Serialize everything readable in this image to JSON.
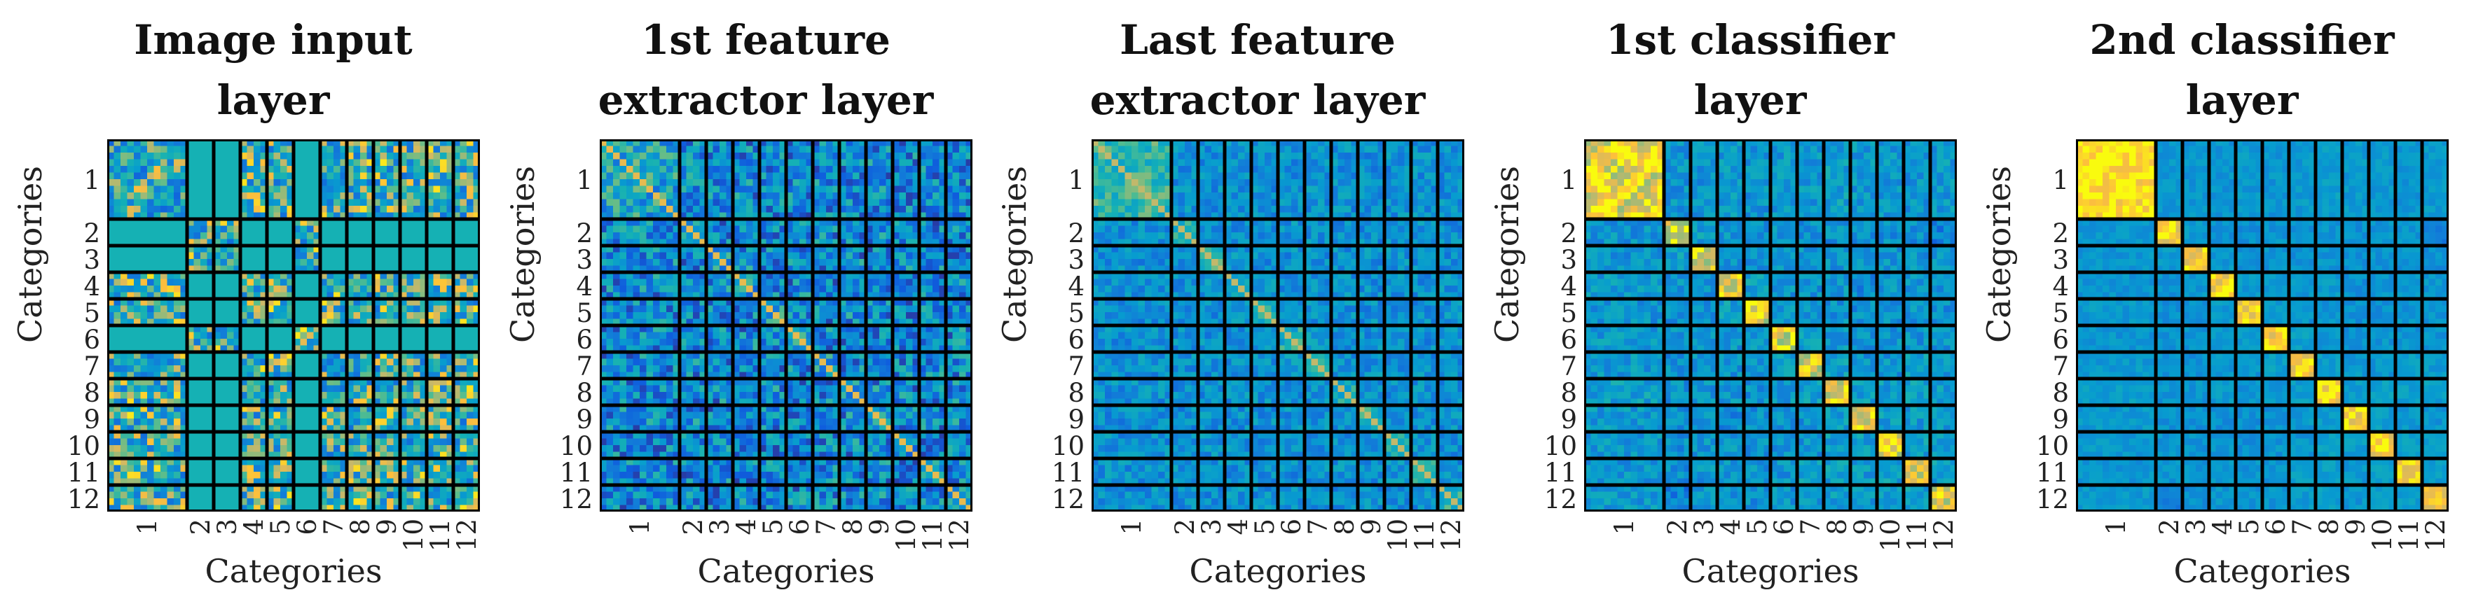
{
  "chart_data": {
    "type": "heatmap",
    "description_note": "",
    "colormap": "parula",
    "cell_separator_color": "#000000",
    "categories": [
      "1",
      "2",
      "3",
      "4",
      "5",
      "6",
      "7",
      "8",
      "9",
      "10",
      "11",
      "12"
    ],
    "category_sizes": [
      12,
      4,
      4,
      4,
      4,
      4,
      4,
      4,
      4,
      4,
      4,
      4
    ],
    "panels": [
      {
        "title": [
          "Image input",
          "layer"
        ],
        "xlabel": "Categories",
        "ylabel": "Categories",
        "block_similarity": [
          [
            0.55,
            0.45,
            0.45,
            0.6,
            0.6,
            0.45,
            0.6,
            0.6,
            0.6,
            0.6,
            0.6,
            0.6
          ],
          [
            0.45,
            0.6,
            0.6,
            0.45,
            0.45,
            0.6,
            0.45,
            0.45,
            0.45,
            0.45,
            0.45,
            0.45
          ],
          [
            0.45,
            0.6,
            0.6,
            0.45,
            0.45,
            0.6,
            0.45,
            0.45,
            0.45,
            0.45,
            0.45,
            0.45
          ],
          [
            0.6,
            0.45,
            0.45,
            0.6,
            0.6,
            0.45,
            0.6,
            0.6,
            0.6,
            0.6,
            0.6,
            0.6
          ],
          [
            0.6,
            0.45,
            0.45,
            0.6,
            0.6,
            0.45,
            0.6,
            0.6,
            0.6,
            0.6,
            0.6,
            0.6
          ],
          [
            0.45,
            0.6,
            0.6,
            0.45,
            0.45,
            0.6,
            0.45,
            0.45,
            0.45,
            0.45,
            0.45,
            0.45
          ],
          [
            0.6,
            0.45,
            0.45,
            0.6,
            0.6,
            0.45,
            0.6,
            0.6,
            0.6,
            0.6,
            0.6,
            0.6
          ],
          [
            0.6,
            0.45,
            0.45,
            0.6,
            0.6,
            0.45,
            0.6,
            0.6,
            0.6,
            0.6,
            0.6,
            0.6
          ],
          [
            0.6,
            0.45,
            0.45,
            0.6,
            0.6,
            0.45,
            0.6,
            0.6,
            0.6,
            0.6,
            0.6,
            0.6
          ],
          [
            0.6,
            0.45,
            0.45,
            0.6,
            0.6,
            0.45,
            0.6,
            0.6,
            0.6,
            0.6,
            0.6,
            0.6
          ],
          [
            0.6,
            0.45,
            0.45,
            0.6,
            0.6,
            0.45,
            0.6,
            0.6,
            0.6,
            0.6,
            0.6,
            0.6
          ],
          [
            0.6,
            0.45,
            0.45,
            0.6,
            0.6,
            0.45,
            0.6,
            0.6,
            0.6,
            0.6,
            0.6,
            0.6
          ]
        ],
        "noise": 0.38,
        "uniform_value": 0.55
      },
      {
        "title": [
          "1st feature",
          "extractor layer"
        ],
        "xlabel": "Categories",
        "ylabel": "Categories",
        "block_similarity": [
          [
            0.5,
            0.35,
            0.35,
            0.35,
            0.35,
            0.35,
            0.35,
            0.35,
            0.35,
            0.35,
            0.35,
            0.35
          ],
          [
            0.35,
            0.45,
            0.35,
            0.35,
            0.35,
            0.35,
            0.35,
            0.35,
            0.35,
            0.35,
            0.35,
            0.35
          ],
          [
            0.35,
            0.35,
            0.45,
            0.35,
            0.35,
            0.35,
            0.35,
            0.35,
            0.35,
            0.35,
            0.35,
            0.35
          ],
          [
            0.35,
            0.35,
            0.35,
            0.45,
            0.35,
            0.35,
            0.35,
            0.35,
            0.35,
            0.35,
            0.35,
            0.35
          ],
          [
            0.35,
            0.35,
            0.35,
            0.35,
            0.45,
            0.35,
            0.35,
            0.35,
            0.35,
            0.35,
            0.35,
            0.35
          ],
          [
            0.35,
            0.35,
            0.35,
            0.35,
            0.35,
            0.45,
            0.35,
            0.35,
            0.35,
            0.35,
            0.35,
            0.35
          ],
          [
            0.35,
            0.35,
            0.35,
            0.35,
            0.35,
            0.35,
            0.45,
            0.35,
            0.35,
            0.35,
            0.35,
            0.35
          ],
          [
            0.35,
            0.35,
            0.35,
            0.35,
            0.35,
            0.35,
            0.35,
            0.45,
            0.35,
            0.35,
            0.35,
            0.35
          ],
          [
            0.35,
            0.35,
            0.35,
            0.35,
            0.35,
            0.35,
            0.35,
            0.35,
            0.45,
            0.35,
            0.35,
            0.35
          ],
          [
            0.35,
            0.35,
            0.35,
            0.35,
            0.35,
            0.35,
            0.35,
            0.35,
            0.35,
            0.45,
            0.35,
            0.35
          ],
          [
            0.35,
            0.35,
            0.35,
            0.35,
            0.35,
            0.35,
            0.35,
            0.35,
            0.35,
            0.35,
            0.45,
            0.35
          ],
          [
            0.35,
            0.35,
            0.35,
            0.35,
            0.35,
            0.35,
            0.35,
            0.35,
            0.35,
            0.35,
            0.35,
            0.45
          ]
        ],
        "noise": 0.3,
        "diagonal_value": 0.9
      },
      {
        "title": [
          "Last feature",
          "extractor layer"
        ],
        "xlabel": "Categories",
        "ylabel": "Categories",
        "block_similarity": [
          [
            0.62,
            0.38,
            0.38,
            0.38,
            0.38,
            0.38,
            0.38,
            0.38,
            0.38,
            0.38,
            0.38,
            0.38
          ],
          [
            0.38,
            0.6,
            0.4,
            0.38,
            0.38,
            0.38,
            0.38,
            0.38,
            0.38,
            0.38,
            0.38,
            0.38
          ],
          [
            0.38,
            0.4,
            0.6,
            0.38,
            0.38,
            0.38,
            0.38,
            0.38,
            0.38,
            0.38,
            0.38,
            0.38
          ],
          [
            0.38,
            0.38,
            0.38,
            0.55,
            0.4,
            0.38,
            0.38,
            0.38,
            0.38,
            0.38,
            0.38,
            0.38
          ],
          [
            0.38,
            0.38,
            0.38,
            0.4,
            0.55,
            0.38,
            0.38,
            0.38,
            0.38,
            0.38,
            0.38,
            0.38
          ],
          [
            0.38,
            0.38,
            0.38,
            0.38,
            0.38,
            0.55,
            0.4,
            0.38,
            0.38,
            0.38,
            0.38,
            0.38
          ],
          [
            0.38,
            0.38,
            0.38,
            0.38,
            0.38,
            0.4,
            0.55,
            0.4,
            0.38,
            0.38,
            0.38,
            0.38
          ],
          [
            0.38,
            0.38,
            0.38,
            0.38,
            0.38,
            0.38,
            0.4,
            0.55,
            0.4,
            0.38,
            0.38,
            0.38
          ],
          [
            0.38,
            0.38,
            0.38,
            0.38,
            0.38,
            0.38,
            0.38,
            0.4,
            0.55,
            0.4,
            0.38,
            0.38
          ],
          [
            0.38,
            0.38,
            0.38,
            0.38,
            0.38,
            0.38,
            0.38,
            0.38,
            0.4,
            0.55,
            0.4,
            0.38
          ],
          [
            0.38,
            0.38,
            0.38,
            0.38,
            0.38,
            0.38,
            0.38,
            0.38,
            0.38,
            0.4,
            0.6,
            0.38
          ],
          [
            0.38,
            0.38,
            0.38,
            0.38,
            0.38,
            0.38,
            0.38,
            0.38,
            0.38,
            0.38,
            0.38,
            0.6
          ]
        ],
        "noise": 0.16,
        "diagonal_value": 0.85
      },
      {
        "title": [
          "1st classifier",
          "layer"
        ],
        "xlabel": "Categories",
        "ylabel": "Categories",
        "block_similarity": [
          [
            0.92,
            0.4,
            0.4,
            0.42,
            0.4,
            0.42,
            0.42,
            0.45,
            0.42,
            0.42,
            0.4,
            0.42
          ],
          [
            0.4,
            0.9,
            0.45,
            0.4,
            0.38,
            0.4,
            0.38,
            0.38,
            0.38,
            0.38,
            0.38,
            0.3
          ],
          [
            0.4,
            0.45,
            0.9,
            0.4,
            0.4,
            0.4,
            0.4,
            0.4,
            0.38,
            0.4,
            0.4,
            0.38
          ],
          [
            0.42,
            0.4,
            0.4,
            0.9,
            0.45,
            0.4,
            0.4,
            0.42,
            0.35,
            0.4,
            0.42,
            0.38
          ],
          [
            0.4,
            0.38,
            0.4,
            0.45,
            0.9,
            0.45,
            0.4,
            0.4,
            0.38,
            0.38,
            0.4,
            0.38
          ],
          [
            0.42,
            0.4,
            0.4,
            0.4,
            0.45,
            0.9,
            0.45,
            0.42,
            0.38,
            0.4,
            0.4,
            0.4
          ],
          [
            0.42,
            0.38,
            0.4,
            0.4,
            0.4,
            0.45,
            0.9,
            0.45,
            0.4,
            0.4,
            0.45,
            0.42
          ],
          [
            0.45,
            0.38,
            0.4,
            0.42,
            0.4,
            0.42,
            0.45,
            0.9,
            0.45,
            0.45,
            0.45,
            0.45
          ],
          [
            0.42,
            0.38,
            0.38,
            0.35,
            0.38,
            0.38,
            0.4,
            0.45,
            0.9,
            0.45,
            0.42,
            0.4
          ],
          [
            0.42,
            0.38,
            0.4,
            0.4,
            0.38,
            0.4,
            0.4,
            0.45,
            0.45,
            0.9,
            0.45,
            0.42
          ],
          [
            0.4,
            0.38,
            0.4,
            0.42,
            0.4,
            0.4,
            0.45,
            0.45,
            0.42,
            0.45,
            0.9,
            0.45
          ],
          [
            0.42,
            0.3,
            0.38,
            0.38,
            0.38,
            0.4,
            0.42,
            0.45,
            0.4,
            0.42,
            0.45,
            0.9
          ]
        ],
        "noise": 0.14
      },
      {
        "title": [
          "2nd classifier",
          "layer"
        ],
        "xlabel": "Categories",
        "ylabel": "Categories",
        "block_similarity": [
          [
            0.98,
            0.4,
            0.4,
            0.4,
            0.42,
            0.4,
            0.42,
            0.45,
            0.42,
            0.42,
            0.4,
            0.42
          ],
          [
            0.4,
            0.95,
            0.42,
            0.38,
            0.38,
            0.4,
            0.38,
            0.4,
            0.38,
            0.4,
            0.4,
            0.3
          ],
          [
            0.4,
            0.42,
            0.95,
            0.42,
            0.4,
            0.4,
            0.38,
            0.4,
            0.38,
            0.4,
            0.4,
            0.38
          ],
          [
            0.4,
            0.38,
            0.42,
            0.95,
            0.42,
            0.4,
            0.4,
            0.42,
            0.38,
            0.4,
            0.42,
            0.4
          ],
          [
            0.42,
            0.38,
            0.4,
            0.42,
            0.95,
            0.45,
            0.4,
            0.4,
            0.38,
            0.38,
            0.4,
            0.4
          ],
          [
            0.4,
            0.4,
            0.4,
            0.4,
            0.45,
            0.95,
            0.45,
            0.42,
            0.38,
            0.4,
            0.4,
            0.4
          ],
          [
            0.42,
            0.38,
            0.38,
            0.4,
            0.4,
            0.45,
            0.95,
            0.45,
            0.42,
            0.4,
            0.45,
            0.42
          ],
          [
            0.45,
            0.4,
            0.4,
            0.42,
            0.4,
            0.42,
            0.45,
            0.95,
            0.45,
            0.45,
            0.45,
            0.45
          ],
          [
            0.42,
            0.38,
            0.38,
            0.38,
            0.38,
            0.38,
            0.42,
            0.45,
            0.95,
            0.45,
            0.42,
            0.4
          ],
          [
            0.42,
            0.4,
            0.4,
            0.4,
            0.38,
            0.4,
            0.4,
            0.45,
            0.45,
            0.95,
            0.45,
            0.42
          ],
          [
            0.4,
            0.4,
            0.4,
            0.42,
            0.4,
            0.4,
            0.45,
            0.45,
            0.42,
            0.45,
            0.95,
            0.45
          ],
          [
            0.42,
            0.3,
            0.38,
            0.4,
            0.4,
            0.4,
            0.42,
            0.45,
            0.4,
            0.42,
            0.45,
            0.95
          ]
        ],
        "noise": 0.08
      }
    ]
  }
}
